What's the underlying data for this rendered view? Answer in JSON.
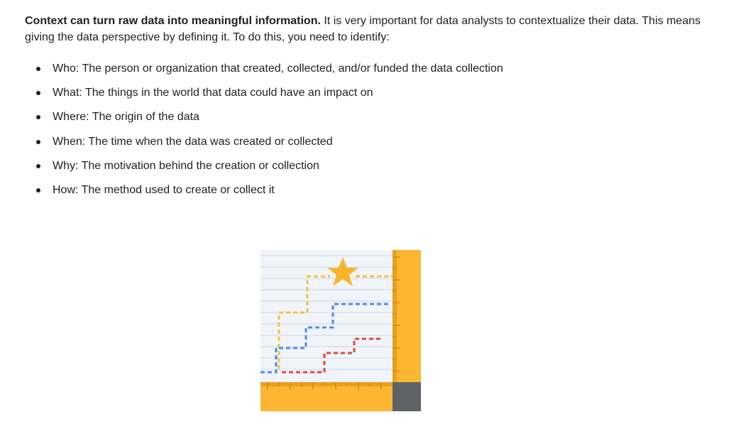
{
  "intro": {
    "bold": "Context can turn raw data into meaningful information.",
    "rest": " It is very important for data analysts to contextualize their data. This means giving the data perspective by defining it. To do this, you need to identify:"
  },
  "list": [
    "Who: The person or organization that created, collected, and/or funded the data collection",
    "What: The things in the world that data could have an impact on",
    "Where: The origin of the data",
    "When: The time when the data was created or collected",
    "Why: The motivation behind the creation or collection",
    "How: The method used to create or collect it"
  ],
  "illustration": {
    "icon": "data-chart-ruler-star-icon",
    "colors": {
      "ruler": "#fbb731",
      "ruler_dark": "#e8a021",
      "corner": "#5f6368",
      "star": "#f7b52c",
      "blue": "#4a8ee8",
      "red": "#e04a3a",
      "yellow": "#f5c242",
      "grid_line": "#dde6f1"
    }
  }
}
